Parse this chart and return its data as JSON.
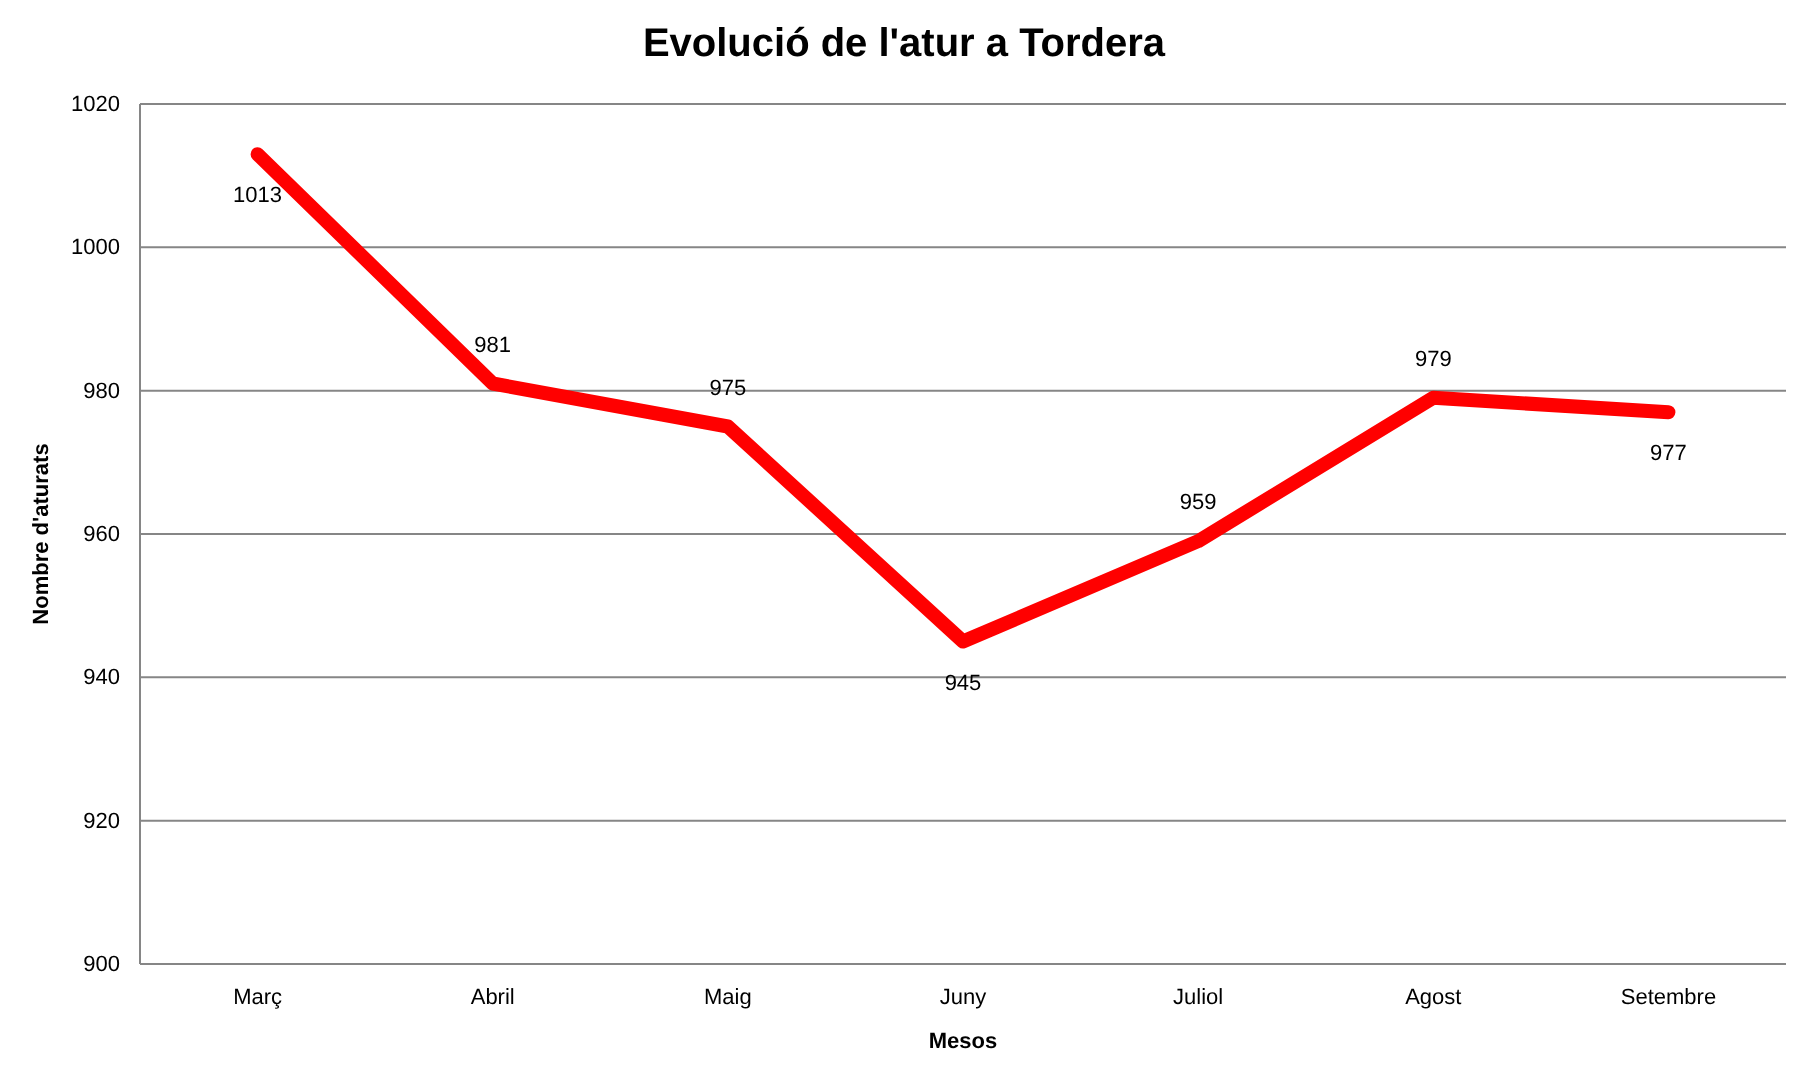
{
  "chart_data": {
    "type": "line",
    "title": "Evolució de l'atur a Tordera",
    "xlabel": "Mesos",
    "ylabel": "Nombre d'aturats",
    "categories": [
      "Març",
      "Abril",
      "Maig",
      "Juny",
      "Juliol",
      "Agost",
      "Setembre"
    ],
    "series": [
      {
        "color": "#ff0000",
        "values": [
          1013,
          981,
          975,
          945,
          959,
          979,
          977
        ]
      }
    ],
    "ylim": [
      900,
      1020
    ],
    "yticks": [
      900,
      920,
      940,
      960,
      980,
      1000,
      1020
    ],
    "grid": "y",
    "data_labels": true,
    "marker": "none",
    "line_style": "solid"
  }
}
